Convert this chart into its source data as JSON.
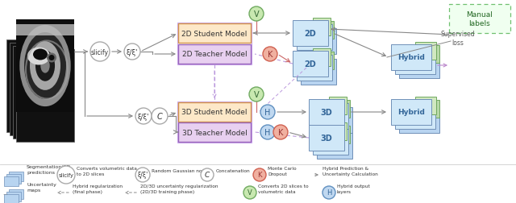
{
  "bg_color": "#ffffff",
  "model_2d_student": {
    "label": "2D Student Model",
    "fc": "#fde8c8",
    "ec": "#d4954a"
  },
  "model_2d_teacher": {
    "label": "2D Teacher Model",
    "fc": "#e8d0f0",
    "ec": "#9966bb"
  },
  "model_3d_student": {
    "label": "3D Student Model",
    "fc": "#fde8c8",
    "ec": "#d4954a"
  },
  "model_3d_teacher": {
    "label": "3D Teacher Model",
    "fc": "#e8d0f0",
    "ec": "#9966bb"
  },
  "stack_blue_fc": "#b8d4f0",
  "stack_blue_bc": "#d0e8f8",
  "stack_blue_ec": "#7090b8",
  "stack_green_fc": "#b8d8a8",
  "stack_green_bc": "#d0e8c0",
  "stack_green_ec": "#70a860",
  "manual_fc": "#f0fff0",
  "manual_ec": "#70c070",
  "circ_v_fc": "#c8e8b0",
  "circ_v_ec": "#70aa60",
  "circ_h_fc": "#c0d8f0",
  "circ_h_ec": "#6090c0",
  "circ_k_fc": "#f0b0a0",
  "circ_k_ec": "#d06050",
  "arrow_gray": "#888888",
  "arrow_red": "#cc6666",
  "arrow_purple": "#aa88cc",
  "dashed_purple": "#bb99dd"
}
